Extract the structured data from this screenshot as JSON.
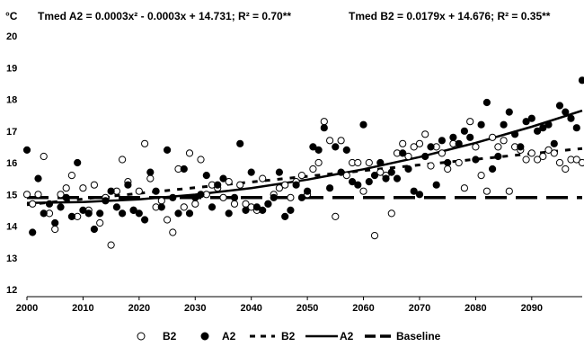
{
  "chart_data": {
    "type": "scatter",
    "ylabel": "°C",
    "equations": {
      "a2": "Tmed A2 = 0.0003x² - 0.0003x + 14.731; R² = 0.70**",
      "b2": "Tmed B2 = 0.0179x + 14.676; R² = 0.35**"
    },
    "xlim": [
      2000,
      2099
    ],
    "ylim": [
      12,
      20
    ],
    "x_ticks": [
      2000,
      2010,
      2020,
      2030,
      2040,
      2050,
      2060,
      2070,
      2080,
      2090
    ],
    "y_ticks": [
      12,
      13,
      14,
      15,
      16,
      17,
      18,
      19,
      20
    ],
    "legend": {
      "position": "bottom",
      "entries": [
        "B2",
        "A2",
        "B2",
        "A2",
        "Baseline"
      ]
    },
    "series": [
      {
        "name": "B2",
        "kind": "points",
        "marker": "open-circle",
        "x": [
          2000,
          2001,
          2002,
          2003,
          2004,
          2005,
          2006,
          2007,
          2008,
          2009,
          2010,
          2011,
          2012,
          2013,
          2014,
          2015,
          2016,
          2017,
          2018,
          2019,
          2020,
          2021,
          2022,
          2023,
          2024,
          2025,
          2026,
          2027,
          2028,
          2029,
          2030,
          2031,
          2032,
          2033,
          2034,
          2035,
          2036,
          2037,
          2038,
          2039,
          2040,
          2041,
          2042,
          2043,
          2044,
          2045,
          2046,
          2047,
          2048,
          2049,
          2050,
          2051,
          2052,
          2053,
          2054,
          2055,
          2056,
          2057,
          2058,
          2059,
          2060,
          2061,
          2062,
          2063,
          2064,
          2065,
          2066,
          2067,
          2068,
          2069,
          2070,
          2071,
          2072,
          2073,
          2074,
          2075,
          2076,
          2077,
          2078,
          2079,
          2080,
          2081,
          2082,
          2083,
          2084,
          2085,
          2086,
          2087,
          2088,
          2089,
          2090,
          2091,
          2092,
          2093,
          2094,
          2095,
          2096,
          2097,
          2098,
          2099
        ],
        "y": [
          15.0,
          14.7,
          15.0,
          16.2,
          14.4,
          13.9,
          15.0,
          15.2,
          15.6,
          14.3,
          15.2,
          14.5,
          15.3,
          14.1,
          14.9,
          13.4,
          15.1,
          16.1,
          15.4,
          14.5,
          15.1,
          16.6,
          15.5,
          14.6,
          14.8,
          14.2,
          13.8,
          15.8,
          14.6,
          16.3,
          14.7,
          16.1,
          15.0,
          15.3,
          15.2,
          14.9,
          15.4,
          14.7,
          15.3,
          14.7,
          14.6,
          14.5,
          15.5,
          14.7,
          15.0,
          15.2,
          15.3,
          14.9,
          15.4,
          15.6,
          15.0,
          15.8,
          16.0,
          17.3,
          16.7,
          14.3,
          16.7,
          15.6,
          16.0,
          16.0,
          15.1,
          16.0,
          13.7,
          15.7,
          15.6,
          14.4,
          16.3,
          16.6,
          16.2,
          16.5,
          16.6,
          16.9,
          15.9,
          16.5,
          16.3,
          15.8,
          16.6,
          16.0,
          15.2,
          17.3,
          16.5,
          15.6,
          15.1,
          16.8,
          16.5,
          16.7,
          15.1,
          16.5,
          16.4,
          16.1,
          16.3,
          16.1,
          16.2,
          16.4,
          16.3,
          16.0,
          15.8,
          16.1,
          16.1,
          16.0
        ]
      },
      {
        "name": "A2",
        "kind": "points",
        "marker": "filled-circle",
        "x": [
          2000,
          2001,
          2002,
          2003,
          2004,
          2005,
          2006,
          2007,
          2008,
          2009,
          2010,
          2011,
          2012,
          2013,
          2014,
          2015,
          2016,
          2017,
          2018,
          2019,
          2020,
          2021,
          2022,
          2023,
          2024,
          2025,
          2026,
          2027,
          2028,
          2029,
          2030,
          2031,
          2032,
          2033,
          2034,
          2035,
          2036,
          2037,
          2038,
          2039,
          2040,
          2041,
          2042,
          2043,
          2044,
          2045,
          2046,
          2047,
          2048,
          2049,
          2050,
          2051,
          2052,
          2053,
          2054,
          2055,
          2056,
          2057,
          2058,
          2059,
          2060,
          2061,
          2062,
          2063,
          2064,
          2065,
          2066,
          2067,
          2068,
          2069,
          2070,
          2071,
          2072,
          2073,
          2074,
          2075,
          2076,
          2077,
          2078,
          2079,
          2080,
          2081,
          2082,
          2083,
          2084,
          2085,
          2086,
          2087,
          2088,
          2089,
          2090,
          2091,
          2092,
          2093,
          2094,
          2095,
          2096,
          2097,
          2098,
          2099
        ],
        "y": [
          16.4,
          13.8,
          15.5,
          14.4,
          14.7,
          14.1,
          14.6,
          14.9,
          14.3,
          16.0,
          14.5,
          14.4,
          13.9,
          14.4,
          14.8,
          15.1,
          14.6,
          14.4,
          15.3,
          14.5,
          14.4,
          14.2,
          15.7,
          15.1,
          14.6,
          16.4,
          14.9,
          14.4,
          15.8,
          14.4,
          14.9,
          15.0,
          15.6,
          14.6,
          15.3,
          15.5,
          14.4,
          14.9,
          16.6,
          14.5,
          15.7,
          14.6,
          14.5,
          14.7,
          14.9,
          15.7,
          14.3,
          14.5,
          15.3,
          14.9,
          15.1,
          16.5,
          16.4,
          17.1,
          15.2,
          16.5,
          15.7,
          16.4,
          15.4,
          15.3,
          17.2,
          15.4,
          15.6,
          16.0,
          15.5,
          15.7,
          15.5,
          16.3,
          15.8,
          15.1,
          15.0,
          16.2,
          16.5,
          15.3,
          16.7,
          16.0,
          16.8,
          16.6,
          17.0,
          16.8,
          16.1,
          17.2,
          17.9,
          15.8,
          16.2,
          17.2,
          17.6,
          16.9,
          16.5,
          17.3,
          17.4,
          17.0,
          17.1,
          17.2,
          16.6,
          17.8,
          17.6,
          17.4,
          17.1,
          18.6
        ]
      },
      {
        "name": "B2",
        "kind": "trend",
        "style": "dashed",
        "x": [
          2000,
          2099
        ],
        "y": [
          14.676,
          16.448
        ]
      },
      {
        "name": "A2",
        "kind": "trend",
        "style": "solid",
        "x": [
          2000,
          2010,
          2020,
          2030,
          2040,
          2050,
          2060,
          2070,
          2080,
          2090,
          2099
        ],
        "y": [
          14.731,
          14.758,
          14.845,
          14.992,
          15.199,
          15.466,
          15.793,
          16.18,
          16.627,
          17.134,
          17.642
        ]
      },
      {
        "name": "Baseline",
        "kind": "trend",
        "style": "long-dash",
        "x": [
          2000,
          2099
        ],
        "y": [
          14.9,
          14.9
        ]
      }
    ]
  }
}
